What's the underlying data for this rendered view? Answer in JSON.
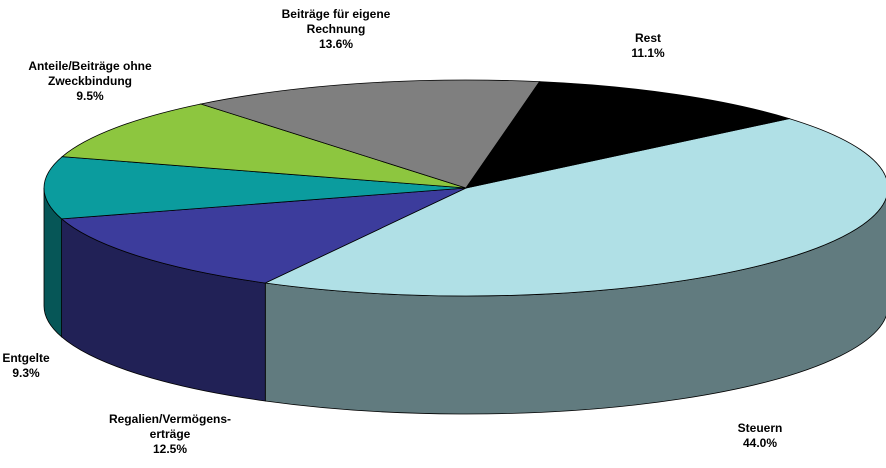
{
  "chart_data": {
    "type": "pie",
    "style": "3d-exploded-pie",
    "legend": "none",
    "slices": [
      {
        "label": [
          "Steuern"
        ],
        "value_text": "44.0%",
        "value": 44.0,
        "color": "#b0e0e6"
      },
      {
        "label": [
          "Regalien/Vermögens-",
          "erträge"
        ],
        "value_text": "12.5%",
        "value": 12.5,
        "color": "#3c3c9c"
      },
      {
        "label": [
          "Entgelte"
        ],
        "value_text": "9.3%",
        "value": 9.3,
        "color": "#0b9c9e"
      },
      {
        "label": [
          "Anteile/Beiträge ohne",
          "Zweckbindung"
        ],
        "value_text": "9.5%",
        "value": 9.5,
        "color": "#8dc63f"
      },
      {
        "label": [
          "Beiträge für eigene",
          "Rechnung"
        ],
        "value_text": "13.6%",
        "value": 13.6,
        "color": "#7f7f7f"
      },
      {
        "label": [
          "Rest"
        ],
        "value_text": "11.1%",
        "value": 11.1,
        "color": "#000000"
      }
    ]
  }
}
